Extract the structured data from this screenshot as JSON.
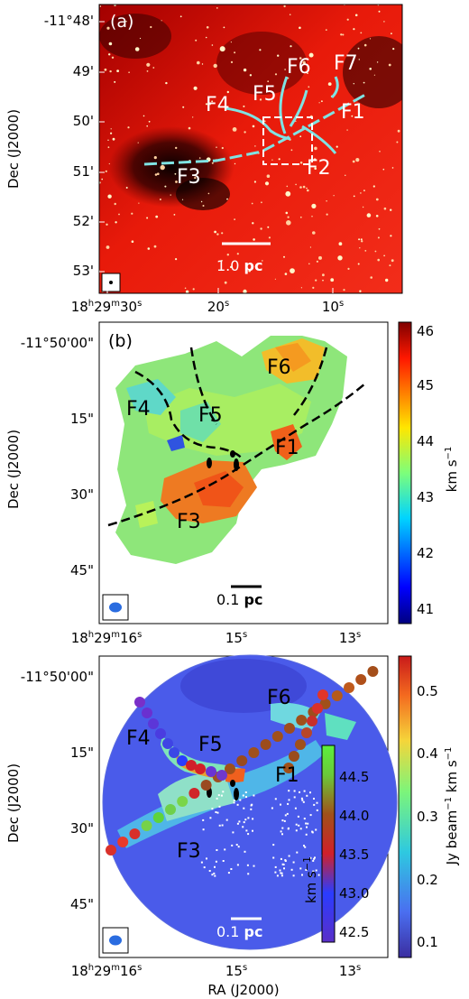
{
  "panel_a": {
    "label": "(a)",
    "dec_ticks": [
      "-11°48'",
      "49'",
      "50'",
      "51'",
      "52'",
      "53'"
    ],
    "ra_ticks": [
      {
        "h": "18",
        "hs": "h",
        "m": "29",
        "ms": "m",
        "s": "30",
        "ss": "s"
      },
      {
        "s": "20",
        "ss": "s"
      },
      {
        "s": "10",
        "ss": "s"
      }
    ],
    "ylabel": "Dec (J2000)",
    "scalebar": {
      "value": "1.0",
      "unit": "pc"
    },
    "filaments": [
      "F1",
      "F2",
      "F3",
      "F4",
      "F5",
      "F6",
      "F7"
    ]
  },
  "panel_b": {
    "label": "(b)",
    "dec_ticks": [
      "-11°50'00\"",
      "15\"",
      "30\"",
      "45\""
    ],
    "ra_ticks": [
      {
        "h": "18",
        "hs": "h",
        "m": "29",
        "ms": "m",
        "s": "16",
        "ss": "s"
      },
      {
        "s": "15",
        "ss": "s"
      },
      {
        "s": "13",
        "ss": "s"
      }
    ],
    "ylabel": "Dec (J2000)",
    "scalebar": {
      "value": "0.1",
      "unit": "pc"
    },
    "filaments": [
      "F1",
      "F3",
      "F4",
      "F5",
      "F6"
    ],
    "colorbar": {
      "ticks": [
        "46",
        "45",
        "44",
        "43",
        "42",
        "41"
      ],
      "label_main": "km s",
      "label_exp": "−1"
    }
  },
  "panel_c": {
    "dec_ticks": [
      "-11°50'00\"",
      "15\"",
      "30\"",
      "45\""
    ],
    "ra_ticks": [
      {
        "h": "18",
        "hs": "h",
        "m": "29",
        "ms": "m",
        "s": "16",
        "ss": "s"
      },
      {
        "s": "15",
        "ss": "s"
      },
      {
        "s": "13",
        "ss": "s"
      }
    ],
    "ylabel": "Dec (J2000)",
    "xlabel": "RA (J2000)",
    "scalebar": {
      "value": "0.1",
      "unit": "pc"
    },
    "filaments": [
      "F1",
      "F3",
      "F4",
      "F5",
      "F6"
    ],
    "colorbar": {
      "ticks": [
        "0.5",
        "0.4",
        "0.3",
        "0.2",
        "0.1"
      ],
      "label_a": "Jy beam",
      "label_b": " km s",
      "exp": "−1"
    },
    "inset_colorbar": {
      "ticks": [
        "44.5",
        "44.0",
        "43.5",
        "43.0",
        "42.5"
      ],
      "label_main": "km s",
      "label_exp": "−1"
    }
  }
}
